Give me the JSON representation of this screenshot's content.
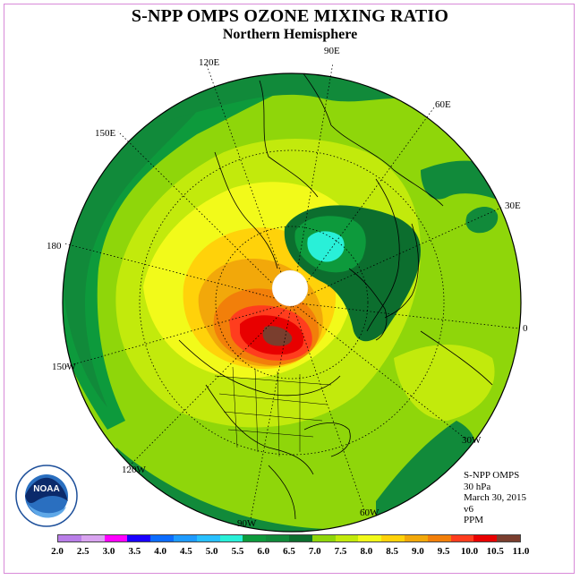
{
  "title": "S-NPP OMPS OZONE MIXING RATIO",
  "subtitle": "Northern Hemisphere",
  "longitude_labels": [
    "90E",
    "60E",
    "30E",
    "0",
    "30W",
    "60W",
    "90W",
    "120W",
    "150W",
    "180",
    "150E",
    "120E"
  ],
  "meta": {
    "instrument": "S-NPP OMPS",
    "level": "30 hPa",
    "date": "March 30, 2015",
    "version": "v6",
    "units": "PPM"
  },
  "colorbar": {
    "colors": [
      "#b97ee8",
      "#d9a3f0",
      "#ff00ff",
      "#1a00ff",
      "#0c6cff",
      "#1e9bff",
      "#28c0ff",
      "#29f0d8",
      "#0d9a3c",
      "#118a3a",
      "#0c6e2e",
      "#8fd60a",
      "#c2ea0c",
      "#f2fa1a",
      "#ffd20a",
      "#f2a80a",
      "#f27f0a",
      "#ff3d1e",
      "#e80000",
      "#7a3e2e"
    ],
    "ticks": [
      "2.0",
      "2.5",
      "3.0",
      "3.5",
      "4.0",
      "4.5",
      "5.0",
      "5.5",
      "6.0",
      "6.5",
      "7.0",
      "7.5",
      "8.0",
      "8.5",
      "9.0",
      "9.5",
      "10.0",
      "10.5",
      "11.0"
    ]
  },
  "logo": {
    "text": "NOAA"
  }
}
